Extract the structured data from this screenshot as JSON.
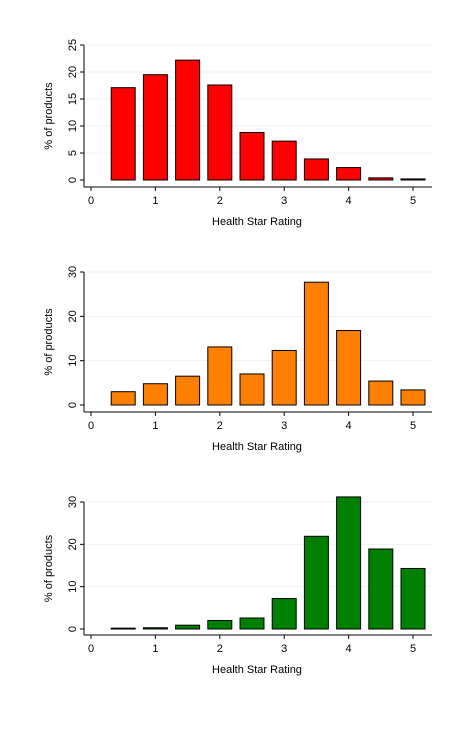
{
  "chart_data": [
    {
      "type": "bar",
      "x": [
        0.5,
        1.0,
        1.5,
        2.0,
        2.5,
        3.0,
        3.5,
        4.0,
        4.5,
        5.0
      ],
      "values": [
        17.1,
        19.5,
        22.2,
        17.6,
        8.8,
        7.2,
        3.9,
        2.3,
        0.4,
        0.2
      ],
      "bar_color": "#ff0000",
      "xlabel": "Health Star Rating",
      "ylabel": "% of products",
      "xlim": [
        0,
        5.25
      ],
      "ylim": [
        0,
        25
      ],
      "xticks": [
        "0",
        "1",
        "2",
        "3",
        "4",
        "5"
      ],
      "yticks": [
        "0",
        "5",
        "10",
        "15",
        "20",
        "25"
      ],
      "grid": true
    },
    {
      "type": "bar",
      "x": [
        0.5,
        1.0,
        1.5,
        2.0,
        2.5,
        3.0,
        3.5,
        4.0,
        4.5,
        5.0
      ],
      "values": [
        3.0,
        4.8,
        6.5,
        13.1,
        7.0,
        12.3,
        27.7,
        16.8,
        5.4,
        3.4
      ],
      "bar_color": "#ff7f00",
      "xlabel": "Health Star Rating",
      "ylabel": "% of products",
      "xlim": [
        0,
        5.25
      ],
      "ylim": [
        0,
        30
      ],
      "xticks": [
        "0",
        "1",
        "2",
        "3",
        "4",
        "5"
      ],
      "yticks": [
        "0",
        "10",
        "20",
        "30"
      ],
      "grid": true
    },
    {
      "type": "bar",
      "x": [
        0.5,
        1.0,
        1.5,
        2.0,
        2.5,
        3.0,
        3.5,
        4.0,
        4.5,
        5.0
      ],
      "values": [
        0.2,
        0.3,
        0.9,
        2.0,
        2.6,
        7.2,
        21.9,
        31.2,
        18.9,
        14.3
      ],
      "bar_color": "#008000",
      "xlabel": "Health Star Rating",
      "ylabel": "% of products",
      "xlim": [
        0,
        5.25
      ],
      "ylim": [
        0,
        30
      ],
      "xticks": [
        "0",
        "1",
        "2",
        "3",
        "4",
        "5"
      ],
      "yticks": [
        "0",
        "10",
        "20",
        "30"
      ],
      "grid": true
    }
  ]
}
